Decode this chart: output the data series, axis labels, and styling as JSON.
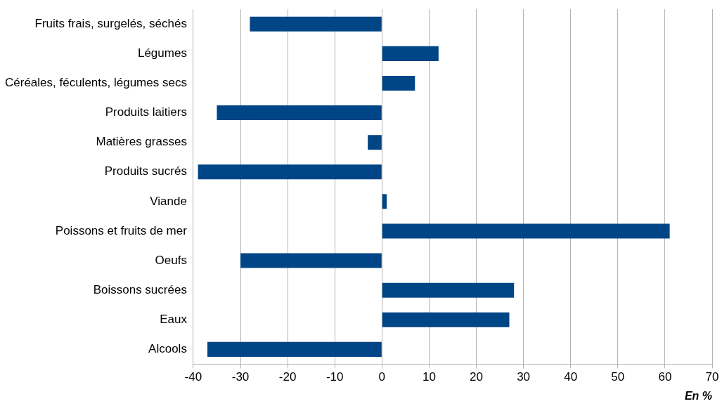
{
  "chart_data": {
    "type": "bar",
    "orientation": "horizontal",
    "xlabel": "En %",
    "categories": [
      "Fruits frais, surgelés, séchés",
      "Légumes",
      "Céréales, féculents, légumes secs",
      "Produits laitiers",
      "Matières grasses",
      "Produits sucrés",
      "Viande",
      "Poissons et fruits de mer",
      "Oeufs",
      "Boissons sucrées",
      "Eaux",
      "Alcools"
    ],
    "values": [
      -28,
      12,
      7,
      -35,
      -3,
      -39,
      1,
      61,
      -30,
      28,
      27,
      -37
    ],
    "color": "#004586",
    "xlim": [
      -40,
      70
    ],
    "xticks": [
      -40,
      -30,
      -20,
      -10,
      0,
      10,
      20,
      30,
      40,
      50,
      60,
      70
    ],
    "grid": "x",
    "legend": false
  }
}
